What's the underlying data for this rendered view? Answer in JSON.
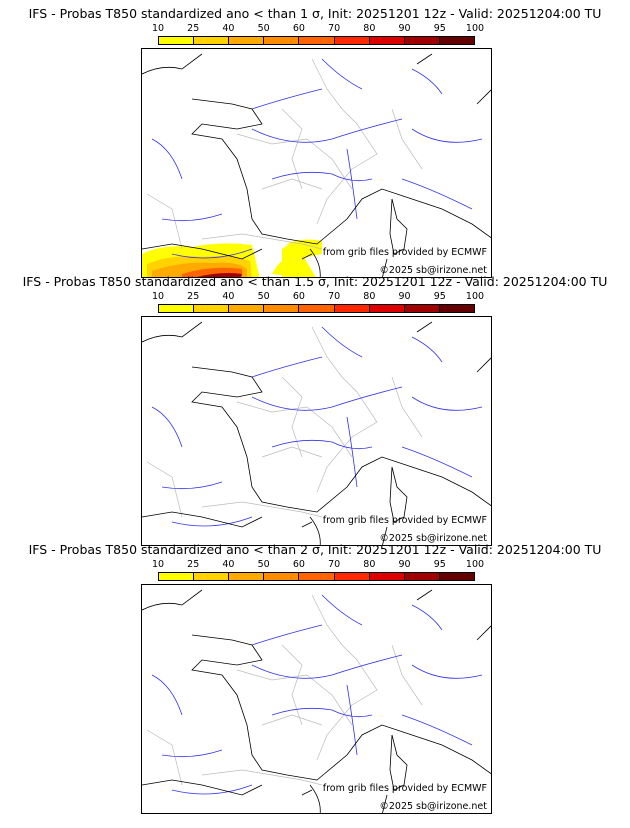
{
  "colorbar": {
    "ticks": [
      "10",
      "25",
      "40",
      "50",
      "60",
      "70",
      "80",
      "90",
      "95",
      "100"
    ],
    "colors": [
      "#ffff00",
      "#ffd200",
      "#ffaa00",
      "#ff8c00",
      "#ff6400",
      "#ff2800",
      "#dc0000",
      "#a00000",
      "#640000"
    ]
  },
  "panels": [
    {
      "title": "IFS - Probas T850  standardized ano < than 1 σ, Init: 20251201 12z - Valid: 20251204:00 TU",
      "has_field": true
    },
    {
      "title": "IFS - Probas T850  standardized ano < than 1.5 σ, Init: 20251201 12z - Valid: 20251204:00 TU",
      "has_field": false
    },
    {
      "title": "IFS - Probas T850  standardized ano < than 2 σ, Init: 20251201 12z - Valid: 20251204:00 TU",
      "has_field": false
    }
  ],
  "credits": {
    "source": "from grib files provided by ECMWF",
    "copyright": "©2025 sb@irizone.net"
  }
}
